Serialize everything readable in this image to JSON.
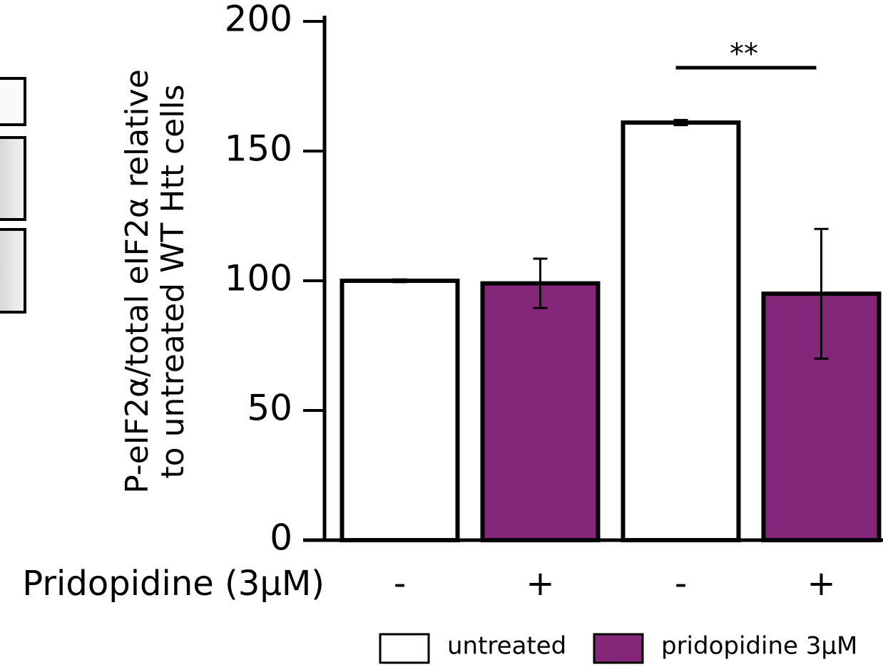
{
  "chart_data": {
    "type": "bar",
    "ylabel": [
      "P-eIF2α/total eIF2α relative",
      "to untreated WT Htt cells"
    ],
    "xlabel": "Pridopidine (3μM)",
    "categories": [
      "-",
      "+",
      "-",
      "+"
    ],
    "series": [
      {
        "name": "untreated",
        "color": "#ffffff",
        "values": [
          100,
          null,
          161,
          null
        ],
        "errors": [
          0.5,
          null,
          1,
          null
        ]
      },
      {
        "name": "pridopidine 3μM",
        "color": "#84267a",
        "values": [
          null,
          99,
          null,
          95
        ],
        "errors": [
          null,
          9.5,
          null,
          25
        ]
      }
    ],
    "ylim": [
      0,
      200
    ],
    "yticks": [
      0,
      50,
      100,
      150,
      200
    ],
    "annotation": {
      "text": "**",
      "from": 2,
      "to": 3
    }
  }
}
